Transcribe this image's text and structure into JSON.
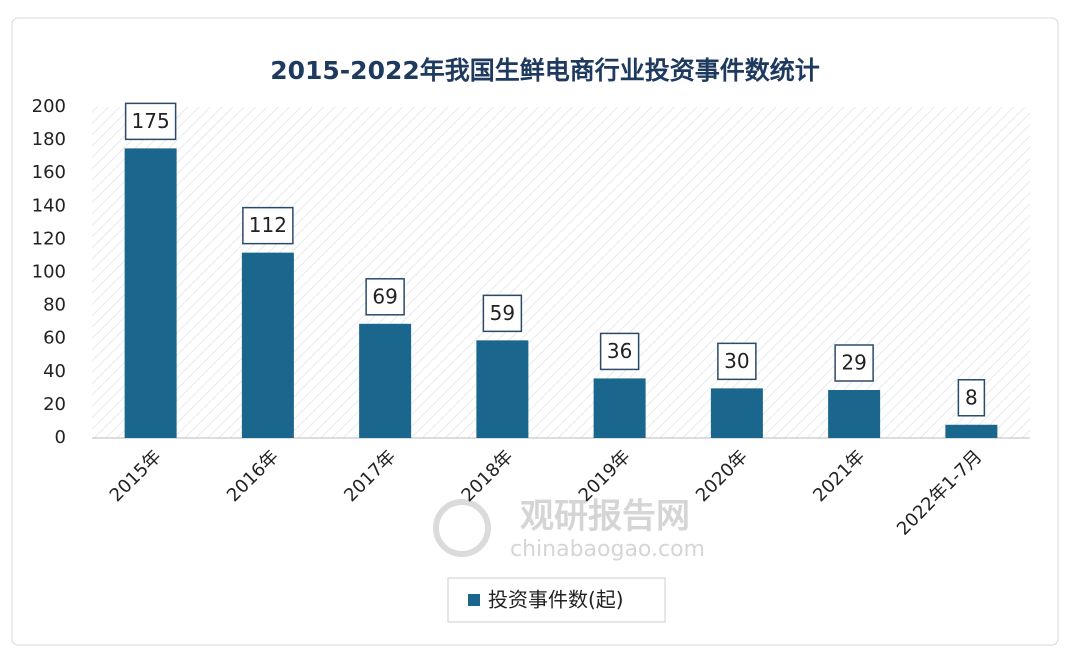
{
  "chart_data": {
    "type": "bar",
    "title": "2015-2022年我国生鲜电商行业投资事件数统计",
    "categories": [
      "2015年",
      "2016年",
      "2017年",
      "2018年",
      "2019年",
      "2020年",
      "2021年",
      "2022年1-7月"
    ],
    "series": [
      {
        "name": "投资事件数(起)",
        "color": "#1b668c",
        "values": [
          175,
          112,
          69,
          59,
          36,
          30,
          29,
          8
        ]
      }
    ],
    "ylim": [
      0,
      200
    ],
    "yticks": [
      0,
      20,
      40,
      60,
      80,
      100,
      120,
      140,
      160,
      180,
      200
    ],
    "data_labels": true,
    "legend": "bottom",
    "watermark": {
      "name": "观研报告网",
      "url": "chinabaogao.com"
    }
  }
}
